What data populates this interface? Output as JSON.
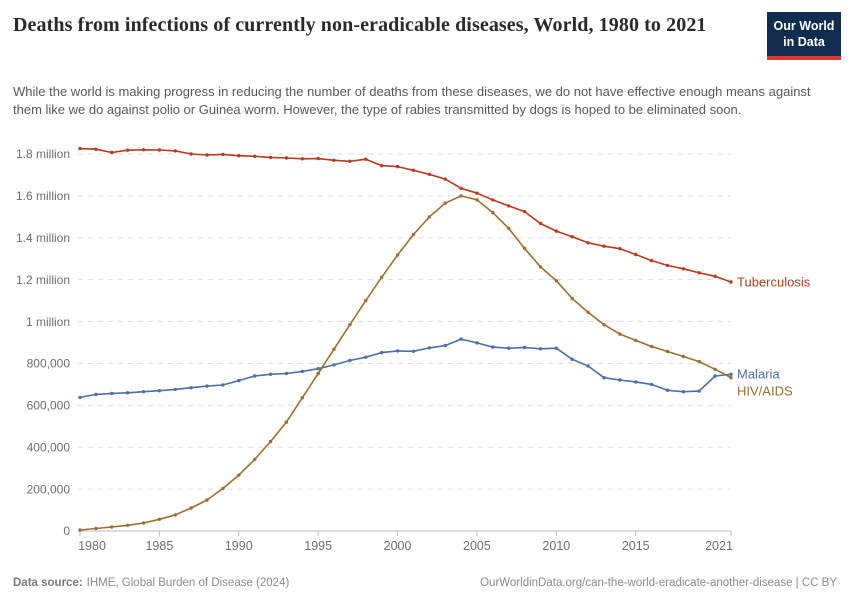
{
  "logo": {
    "line1": "Our World",
    "line2": "in Data",
    "bg_color": "#102d50",
    "accent_color": "#e0362c"
  },
  "chart_data": {
    "type": "line",
    "title": "Deaths from infections of currently non-eradicable diseases, World, 1980 to 2021",
    "subtitle": "While the world is making progress in reducing the number of deaths from these diseases, we do not have effective enough means against them like we do against polio or Guinea worm. However, the type of rabies transmitted by dogs is hoped to be eliminated soon.",
    "xlabel": "",
    "ylabel": "",
    "ylim": [
      0,
      1830000
    ],
    "grid": "horizontal-dashed",
    "legend_position": "line-end-labels",
    "x": [
      1980,
      1981,
      1982,
      1983,
      1984,
      1985,
      1986,
      1987,
      1988,
      1989,
      1990,
      1991,
      1992,
      1993,
      1994,
      1995,
      1996,
      1997,
      1998,
      1999,
      2000,
      2001,
      2002,
      2003,
      2004,
      2005,
      2006,
      2007,
      2008,
      2009,
      2010,
      2011,
      2012,
      2013,
      2014,
      2015,
      2016,
      2017,
      2018,
      2019,
      2020,
      2021
    ],
    "x_ticks": [
      1980,
      1985,
      1990,
      1995,
      2000,
      2005,
      2010,
      2015,
      2021
    ],
    "y_ticks": [
      {
        "value": 1800000,
        "label": "1.8 million"
      },
      {
        "value": 1600000,
        "label": "1.6 million"
      },
      {
        "value": 1400000,
        "label": "1.4 million"
      },
      {
        "value": 1200000,
        "label": "1.2 million"
      },
      {
        "value": 1000000,
        "label": "1 million"
      },
      {
        "value": 800000,
        "label": "800,000"
      },
      {
        "value": 600000,
        "label": "600,000"
      },
      {
        "value": 400000,
        "label": "400,000"
      },
      {
        "value": 200000,
        "label": "200,000"
      },
      {
        "value": 0,
        "label": "0"
      }
    ],
    "series": [
      {
        "name": "Tuberculosis",
        "color": "#b63b22",
        "values": [
          1826000,
          1823000,
          1807000,
          1818000,
          1820000,
          1819000,
          1815000,
          1800000,
          1795000,
          1798000,
          1792000,
          1789000,
          1784000,
          1781000,
          1777000,
          1778000,
          1770000,
          1765000,
          1775000,
          1744000,
          1740000,
          1722000,
          1703000,
          1680000,
          1636000,
          1613000,
          1581000,
          1552000,
          1525000,
          1468000,
          1432000,
          1405000,
          1376000,
          1360000,
          1348000,
          1320000,
          1291000,
          1268000,
          1252000,
          1233000,
          1216000,
          1189000
        ]
      },
      {
        "name": "Malaria",
        "color": "#4c6fa5",
        "values": [
          638000,
          652000,
          657000,
          660000,
          665000,
          670000,
          676000,
          684000,
          692000,
          697000,
          718000,
          740000,
          748000,
          752000,
          762000,
          775000,
          793000,
          814000,
          830000,
          852000,
          860000,
          858000,
          874000,
          885000,
          916000,
          898000,
          878000,
          873000,
          876000,
          870000,
          873000,
          820000,
          788000,
          732000,
          721000,
          712000,
          700000,
          672000,
          665000,
          668000,
          740000,
          748000
        ]
      },
      {
        "name": "HIV/AIDS",
        "color": "#9a7032",
        "values": [
          5000,
          12000,
          19000,
          27000,
          38000,
          56000,
          77000,
          110000,
          148000,
          203000,
          267000,
          342000,
          427000,
          520000,
          636000,
          752000,
          868000,
          985000,
          1100000,
          1212000,
          1318000,
          1415000,
          1499000,
          1565000,
          1600000,
          1581000,
          1520000,
          1445000,
          1349000,
          1261000,
          1195000,
          1110000,
          1044000,
          985000,
          940000,
          910000,
          881000,
          857000,
          833000,
          809000,
          772000,
          732000
        ]
      }
    ]
  },
  "footer": {
    "source_label": "Data source:",
    "source_text": "IHME, Global Burden of Disease (2024)",
    "link_text": "OurWorldinData.org/can-the-world-eradicate-another-disease | CC BY"
  }
}
